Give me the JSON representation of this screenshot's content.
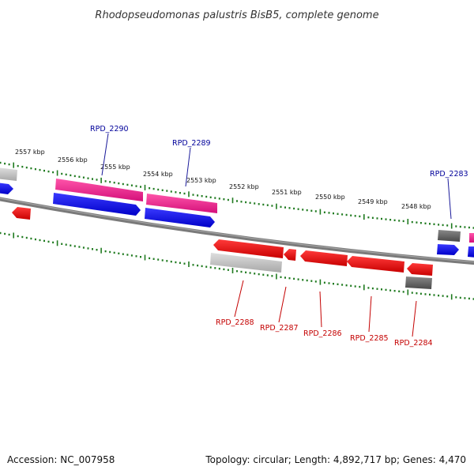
{
  "title": "Rhodopseudomonas palustris BisB5, complete genome",
  "footer": {
    "accession": "Accession: NC_007958",
    "topology": "Topology: circular; Length: 4,892,717 bp; Genes: 4,470"
  },
  "colors": {
    "backbone": "#808080",
    "ticks": "#1f7a1f",
    "cds_forward": "#0000ff",
    "cds_reverse": "#ff0000",
    "rna": "#ff1493",
    "pseudo": "#c0c0c0",
    "other": "#606060",
    "label_top": "#00009a",
    "label_bottom": "#c40000"
  },
  "kbp_labels": [
    "2557 kbp",
    "2556 kbp",
    "2555 kbp",
    "2554 kbp",
    "2553 kbp",
    "2552 kbp",
    "2551 kbp",
    "2550 kbp",
    "2549 kbp",
    "2548 kbp"
  ],
  "gene_labels_top": [
    "RPD_2290",
    "RPD_2289",
    "RPD_2283"
  ],
  "gene_labels_bottom": [
    "RPD_2288",
    "RPD_2287",
    "RPD_2286",
    "RPD_2285",
    "RPD_2284"
  ]
}
